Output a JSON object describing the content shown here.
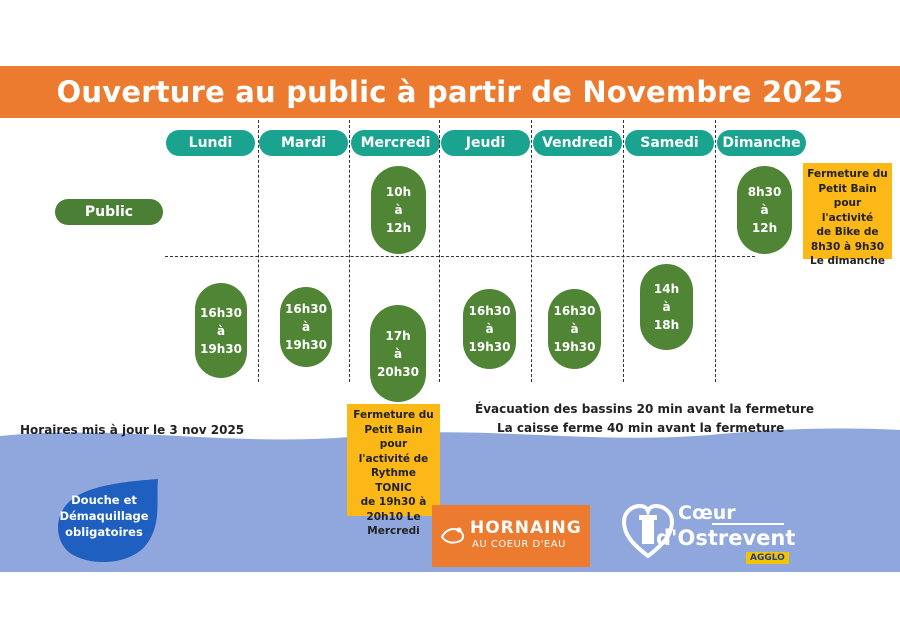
{
  "title": "Ouverture au public à partir de Novembre 2025",
  "days": [
    "Lundi",
    "Mardi",
    "Mercredi",
    "Jeudi",
    "Vendredi",
    "Samedi",
    "Dimanche"
  ],
  "row_label": "Public",
  "morning_slots": {
    "mercredi": [
      "10h",
      "à",
      "12h"
    ],
    "dimanche": [
      "8h30",
      "à",
      "12h"
    ]
  },
  "evening_slots": {
    "lundi": [
      "16h30",
      "à",
      "19h30"
    ],
    "mardi": [
      "16h30",
      "à",
      "19h30"
    ],
    "mercredi": [
      "17h",
      "à",
      "20h30"
    ],
    "jeudi": [
      "16h30",
      "à",
      "19h30"
    ],
    "vendredi": [
      "16h30",
      "à",
      "19h30"
    ],
    "samedi": [
      "14h",
      "à",
      "18h"
    ]
  },
  "notes": {
    "dimanche": [
      "Fermeture du",
      "Petit Bain",
      "pour l'activité",
      "de Bike de",
      "8h30 à 9h30",
      "Le dimanche"
    ],
    "mercredi": [
      "Fermeture du",
      "Petit Bain pour",
      "l'activité de",
      "Rythme TONIC",
      "de 19h30 à",
      "20h10 Le",
      "Mercredi"
    ]
  },
  "updated": "Horaires mis à jour le 3 nov 2025",
  "info_lines": [
    "Évacuation des bassins 20 min avant la fermeture",
    "La caisse ferme 40 min avant la fermeture"
  ],
  "drop": [
    "Douche et",
    "Démaquillage",
    "obligatoires"
  ],
  "logo_hornaing": {
    "name": "HORNAING",
    "tagline": "AU COEUR D'EAU"
  },
  "logo_coeur": {
    "line1": "Cœur",
    "line2": "d'Ostrevent",
    "tag": "AGGLO"
  },
  "colors": {
    "banner": "#ec7a2f",
    "day": "#1aa38e",
    "slot": "#4f8535",
    "note": "#fcb817",
    "footer": "#8fa7dc"
  }
}
